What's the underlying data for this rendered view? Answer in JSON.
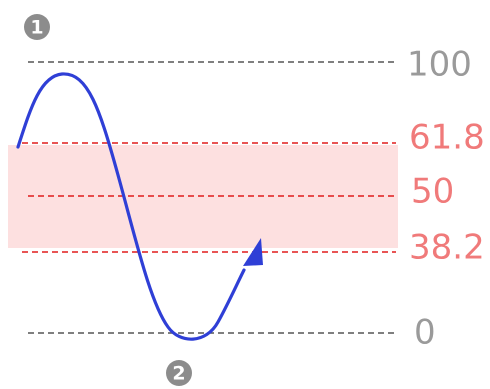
{
  "diagram": {
    "levels": [
      {
        "label": "100",
        "color": "#9a9a9a",
        "line_color": "#555555"
      },
      {
        "label": "61.8",
        "color": "#f07a7a",
        "line_color": "#e01b1b"
      },
      {
        "label": "50",
        "color": "#f07a7a",
        "line_color": "#e01b1b"
      },
      {
        "label": "38.2",
        "color": "#f07a7a",
        "line_color": "#e01b1b"
      },
      {
        "label": "0",
        "color": "#9a9a9a",
        "line_color": "#555555"
      }
    ],
    "markers": [
      {
        "number": "1"
      },
      {
        "number": "2"
      }
    ],
    "colors": {
      "zone_fill": "#fde0e0",
      "price_path": "#2f3fd6",
      "badge": "#8c8c8c"
    }
  }
}
